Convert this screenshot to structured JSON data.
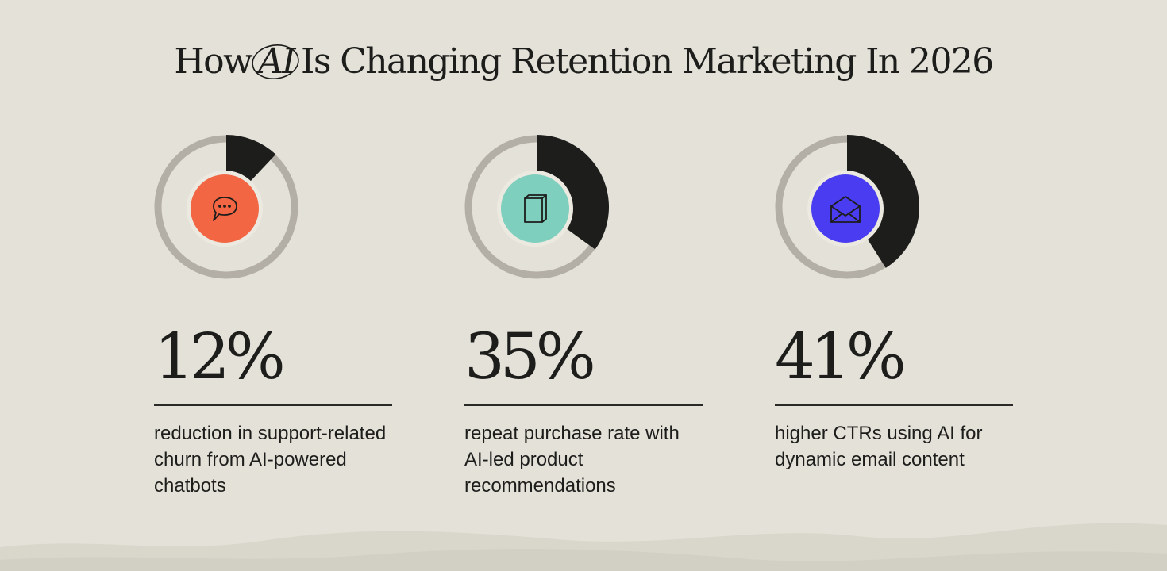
{
  "title": {
    "before": "How",
    "highlight": "AI",
    "after": "Is Changing Retention Marketing In 2026"
  },
  "chart_data": [
    {
      "type": "pie",
      "value_label": "12%",
      "value": 12,
      "description": "reduction in support-related churn from AI-powered chatbots",
      "icon": "speech-bubble-icon",
      "icon_color": "#f26644"
    },
    {
      "type": "pie",
      "value_label": "35%",
      "value": 35,
      "description": "repeat purchase rate with AI-led product recommendations",
      "icon": "book-icon",
      "icon_color": "#7ecfbe"
    },
    {
      "type": "pie",
      "value_label": "41%",
      "value": 41,
      "description": "higher CTRs using AI for dynamic email content",
      "icon": "envelope-icon",
      "icon_color": "#4a3cf0"
    }
  ],
  "colors": {
    "background": "#e3e1d8",
    "ring": "#b3afa6",
    "filled": "#1d1d1b",
    "text": "#1d1d1b"
  }
}
